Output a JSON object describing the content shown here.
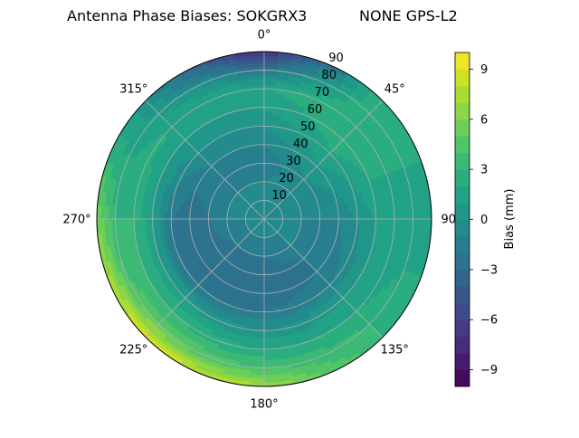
{
  "chart_data": {
    "type": "heatmap",
    "subtype": "polar-contour",
    "title": "Antenna Phase Biases: SOKGRX3",
    "title_right": "NONE GPS-L2",
    "projection": "polar",
    "theta_zero": "north",
    "theta_direction": "clockwise",
    "theta_tick_labels": [
      "0°",
      "45°",
      "90°",
      "135°",
      "180°",
      "225°",
      "270°",
      "315°"
    ],
    "theta_ticks": [
      0,
      45,
      90,
      135,
      180,
      225,
      270,
      315
    ],
    "r_ticks": [
      10,
      20,
      30,
      40,
      50,
      60,
      70,
      80,
      90
    ],
    "r_tick_labels": [
      "10",
      "20",
      "30",
      "40",
      "50",
      "60",
      "70",
      "80",
      "90"
    ],
    "rlim": [
      0,
      90
    ],
    "grid": true,
    "azimuth": [
      0,
      45,
      90,
      135,
      180,
      225,
      270,
      315
    ],
    "zenith": [
      0,
      10,
      20,
      30,
      40,
      50,
      60,
      70,
      80,
      90
    ],
    "values": [
      [
        -1,
        -1,
        -1,
        -1,
        -1,
        -1,
        -1,
        -1
      ],
      [
        -1,
        -1,
        -1,
        -1,
        -1,
        -1,
        -1,
        -1
      ],
      [
        -1,
        0,
        -1,
        -1,
        -2,
        -2,
        -1,
        -1
      ],
      [
        -2,
        0,
        -1,
        -2,
        -3,
        -3,
        -2,
        -1
      ],
      [
        -1,
        1,
        -1,
        -2,
        -3,
        -3,
        -3,
        -1
      ],
      [
        0,
        2,
        0,
        -1,
        -2,
        -2,
        -2,
        0
      ],
      [
        1,
        3,
        1,
        1,
        0,
        1,
        1,
        1
      ],
      [
        2,
        3,
        1,
        2,
        2,
        3,
        3,
        2
      ],
      [
        -2,
        3,
        1,
        3,
        4,
        5,
        3,
        1
      ],
      [
        -8,
        3,
        1,
        3,
        7,
        9,
        6,
        0
      ]
    ],
    "colormap": "viridis",
    "levels": {
      "min": -10,
      "max": 10,
      "step": 1
    },
    "colorbar": {
      "label": "Bias (mm)",
      "ticks": [
        -9,
        -6,
        -3,
        0,
        3,
        6,
        9
      ],
      "tick_labels": [
        "−9",
        "−6",
        "−3",
        "0",
        "3",
        "6",
        "9"
      ],
      "placement": "right"
    }
  }
}
